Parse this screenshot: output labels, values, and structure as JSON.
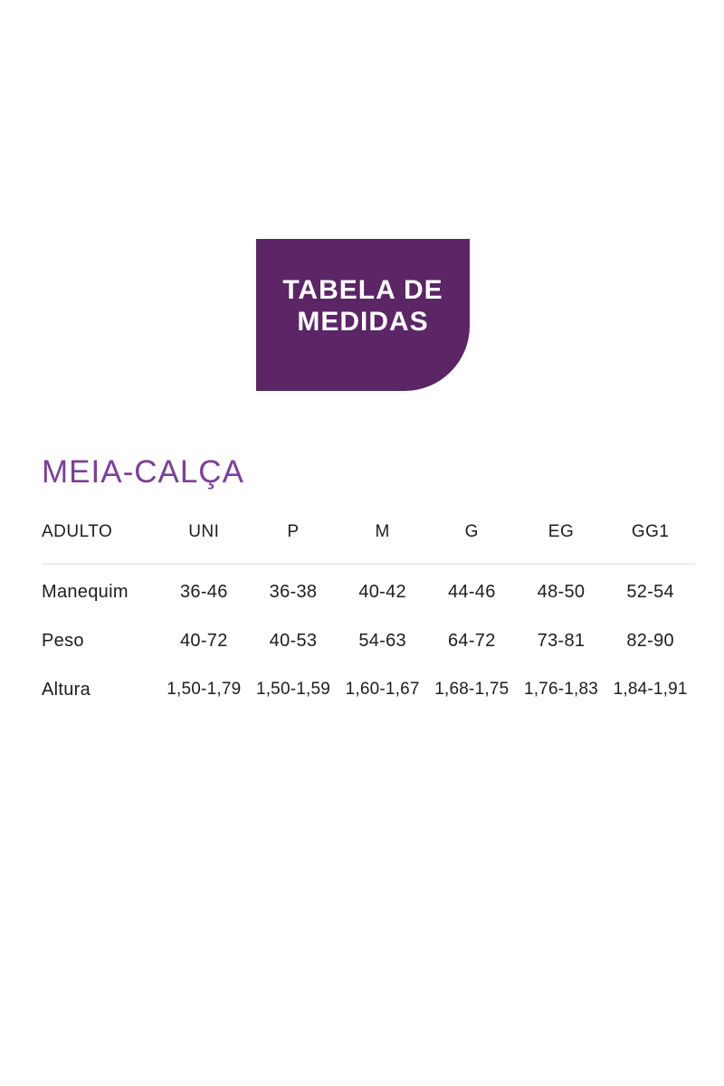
{
  "badge": {
    "line1": "TABELA DE",
    "line2": "MEDIDAS"
  },
  "section": {
    "title": "MEIA-CALÇA"
  },
  "table": {
    "header": [
      "ADULTO",
      "UNI",
      "P",
      "M",
      "G",
      "EG",
      "GG1"
    ],
    "rows": [
      {
        "label": "Manequim",
        "values": [
          "36-46",
          "36-38",
          "40-42",
          "44-46",
          "48-50",
          "52-54"
        ]
      },
      {
        "label": "Peso",
        "values": [
          "40-72",
          "40-53",
          "54-63",
          "64-72",
          "73-81",
          "82-90"
        ]
      },
      {
        "label": "Altura",
        "values": [
          "1,50-1,79",
          "1,50-1,59",
          "1,60-1,67",
          "1,68-1,75",
          "1,76-1,83",
          "1,84-1,91"
        ]
      }
    ]
  },
  "colors": {
    "badge_background": "#5b2566",
    "badge_text": "#ffffff",
    "section_title": "#7c3f9b",
    "table_text": "#1d1d1d",
    "divider": "#ededed",
    "page_background": "#ffffff"
  },
  "chart_data": {
    "type": "table",
    "title": "TABELA DE MEDIDAS",
    "subtitle": "MEIA-CALÇA",
    "columns": [
      "ADULTO",
      "UNI",
      "P",
      "M",
      "G",
      "EG",
      "GG1"
    ],
    "rows": [
      [
        "Manequim",
        "36-46",
        "36-38",
        "40-42",
        "44-46",
        "48-50",
        "52-54"
      ],
      [
        "Peso",
        "40-72",
        "40-53",
        "54-63",
        "64-72",
        "73-81",
        "82-90"
      ],
      [
        "Altura",
        "1,50-1,79",
        "1,50-1,59",
        "1,60-1,67",
        "1,68-1,75",
        "1,76-1,83",
        "1,84-1,91"
      ]
    ]
  }
}
